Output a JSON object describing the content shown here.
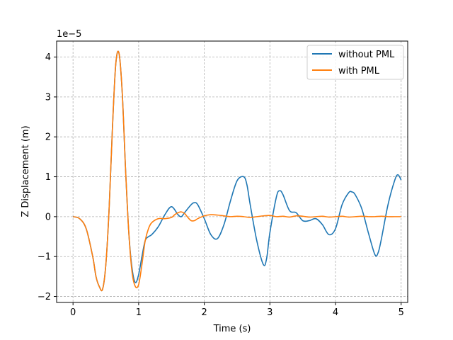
{
  "chart_data": {
    "type": "line",
    "xlabel": "Time (s)",
    "ylabel": "Z Displacement (m)",
    "y_scale_label": "1e−5",
    "xlim": [
      -0.25,
      5.1
    ],
    "ylim": [
      -2.15,
      4.4
    ],
    "x_ticks": [
      0,
      1,
      2,
      3,
      4,
      5
    ],
    "x_tick_labels": [
      "0",
      "1",
      "2",
      "3",
      "4",
      "5"
    ],
    "y_ticks": [
      -2,
      -1,
      0,
      1,
      2,
      3,
      4
    ],
    "y_tick_labels": [
      "−2",
      "−1",
      "0",
      "1",
      "2",
      "3",
      "4"
    ],
    "grid": true,
    "grid_style": "dashed",
    "legend_position": "top-right",
    "series": [
      {
        "name": "without PML",
        "color": "#1f77b4",
        "x": [
          0,
          0.1,
          0.2,
          0.3,
          0.35,
          0.4,
          0.45,
          0.5,
          0.55,
          0.6,
          0.65,
          0.7,
          0.75,
          0.8,
          0.85,
          0.9,
          0.95,
          1.0,
          1.05,
          1.1,
          1.15,
          1.2,
          1.3,
          1.4,
          1.5,
          1.6,
          1.65,
          1.7,
          1.8,
          1.85,
          1.9,
          2.0,
          2.1,
          2.2,
          2.3,
          2.4,
          2.5,
          2.6,
          2.65,
          2.7,
          2.8,
          2.9,
          2.95,
          3.0,
          3.1,
          3.15,
          3.2,
          3.3,
          3.4,
          3.5,
          3.6,
          3.7,
          3.8,
          3.9,
          4.0,
          4.1,
          4.2,
          4.25,
          4.3,
          4.4,
          4.5,
          4.6,
          4.65,
          4.7,
          4.8,
          4.9,
          4.95,
          5.0
        ],
        "y": [
          0,
          -0.05,
          -0.3,
          -1.0,
          -1.5,
          -1.75,
          -1.82,
          -1.2,
          0.2,
          2.2,
          3.8,
          4.1,
          3.1,
          1.2,
          -0.4,
          -1.3,
          -1.65,
          -1.45,
          -1.0,
          -0.6,
          -0.5,
          -0.45,
          -0.25,
          0.05,
          0.25,
          0.05,
          0.0,
          0.1,
          0.3,
          0.35,
          0.3,
          -0.05,
          -0.45,
          -0.55,
          -0.2,
          0.4,
          0.9,
          1.0,
          0.8,
          0.3,
          -0.6,
          -1.2,
          -1.05,
          -0.4,
          0.5,
          0.65,
          0.55,
          0.15,
          0.1,
          -0.1,
          -0.1,
          -0.05,
          -0.2,
          -0.45,
          -0.3,
          0.3,
          0.6,
          0.62,
          0.55,
          0.2,
          -0.4,
          -0.95,
          -0.9,
          -0.55,
          0.3,
          0.9,
          1.05,
          0.92
        ]
      },
      {
        "name": "with PML",
        "color": "#ff7f0e",
        "x": [
          0,
          0.1,
          0.2,
          0.3,
          0.35,
          0.4,
          0.45,
          0.5,
          0.55,
          0.6,
          0.65,
          0.7,
          0.75,
          0.8,
          0.85,
          0.9,
          0.95,
          1.0,
          1.05,
          1.1,
          1.15,
          1.2,
          1.3,
          1.4,
          1.5,
          1.55,
          1.6,
          1.65,
          1.7,
          1.75,
          1.8,
          1.85,
          1.9,
          2.0,
          2.1,
          2.2,
          2.3,
          2.4,
          2.5,
          2.6,
          2.7,
          2.8,
          2.9,
          3.0,
          3.1,
          3.2,
          3.3,
          3.4,
          3.5,
          3.6,
          3.7,
          3.8,
          3.9,
          4.0,
          4.1,
          4.2,
          4.3,
          4.4,
          4.5,
          4.6,
          4.7,
          4.8,
          4.9,
          5.0
        ],
        "y": [
          0,
          -0.05,
          -0.3,
          -1.0,
          -1.5,
          -1.75,
          -1.82,
          -1.2,
          0.2,
          2.2,
          3.8,
          4.1,
          3.1,
          1.2,
          -0.4,
          -1.4,
          -1.75,
          -1.7,
          -1.2,
          -0.6,
          -0.3,
          -0.15,
          -0.05,
          -0.05,
          -0.02,
          0.05,
          0.1,
          0.12,
          0.08,
          -0.02,
          -0.1,
          -0.1,
          -0.05,
          0.02,
          0.05,
          0.04,
          0.02,
          0.0,
          0.01,
          0.0,
          -0.02,
          0.0,
          0.02,
          0.03,
          0.0,
          0.01,
          -0.01,
          0.02,
          0.01,
          -0.01,
          0.0,
          0.01,
          -0.01,
          0.0,
          0.01,
          -0.01,
          0.0,
          0.01,
          0.0,
          0.0,
          0.01,
          0.0,
          0.0,
          0.0
        ]
      }
    ]
  }
}
